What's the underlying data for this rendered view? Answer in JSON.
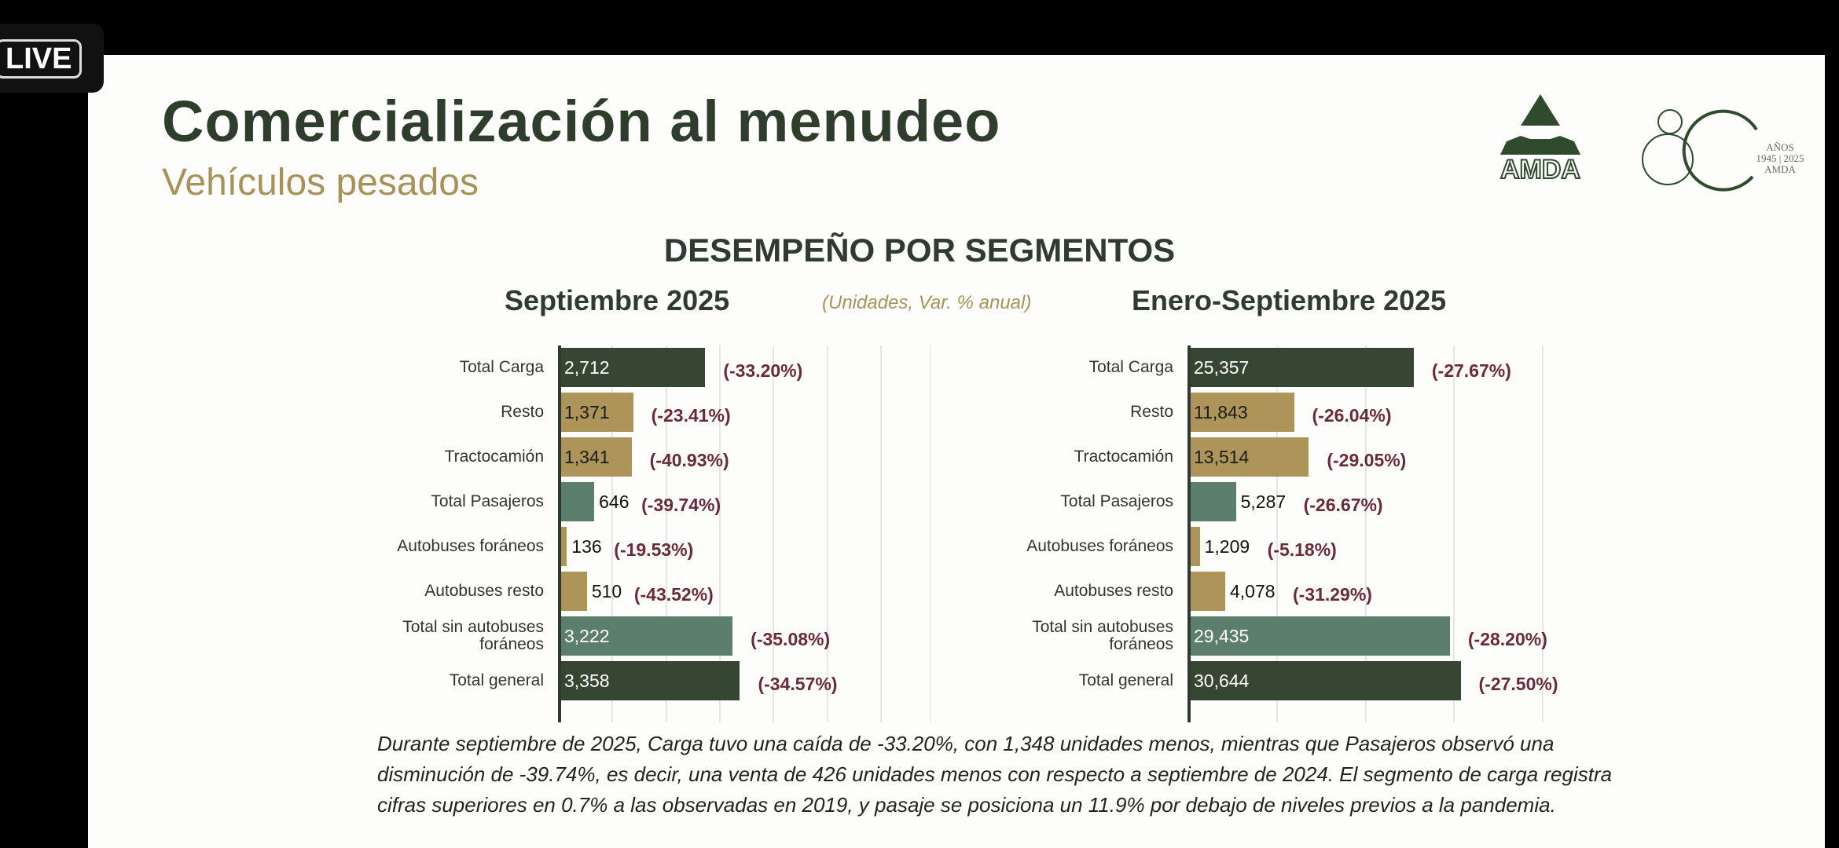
{
  "live_badge": "LIVE",
  "header": {
    "title": "Comercialización al menudeo",
    "subtitle": "Vehículos pesados",
    "logo_text": "AMDA",
    "anniversary": {
      "number": "80",
      "line1": "AÑOS",
      "line2": "1945 | 2025",
      "line3": "AMDA"
    }
  },
  "section_title": "DESEMPEÑO POR SEGMENTOS",
  "units_note": "(Unidades, Var. % anual)",
  "colors": {
    "dark": "#374533",
    "gold": "#ad9459",
    "teal": "#5c7e6c",
    "pct": "#6b2a3a"
  },
  "chart_data": [
    {
      "type": "bar",
      "orientation": "horizontal",
      "title": "Septiembre 2025",
      "xlim": [
        0,
        6000
      ],
      "grid_step": 1000,
      "categories": [
        "Total Carga",
        "Resto",
        "Tractocamión",
        "Total Pasajeros",
        "Autobuses foráneos",
        "Autobuses resto",
        "Total sin autobuses foráneos",
        "Total general"
      ],
      "values": [
        2712,
        1371,
        1341,
        646,
        136,
        510,
        3222,
        3358
      ],
      "value_labels": [
        "2,712",
        "1,371",
        "1,341",
        "646",
        "136",
        "510",
        "3,222",
        "3,358"
      ],
      "var_pct": [
        "(-33.20%)",
        "(-23.41%)",
        "(-40.93%)",
        "(-39.74%)",
        "(-19.53%)",
        "(-43.52%)",
        "(-35.08%)",
        "(-34.57%)"
      ],
      "bar_colors": [
        "dark",
        "gold",
        "gold",
        "teal",
        "gold",
        "gold",
        "teal",
        "dark"
      ]
    },
    {
      "type": "bar",
      "orientation": "horizontal",
      "title": "Enero-Septiembre 2025",
      "xlim": [
        0,
        40000
      ],
      "grid_step": 10000,
      "categories": [
        "Total Carga",
        "Resto",
        "Tractocamión",
        "Total Pasajeros",
        "Autobuses foráneos",
        "Autobuses resto",
        "Total sin autobuses foráneos",
        "Total general"
      ],
      "values": [
        25357,
        11843,
        13514,
        5287,
        1209,
        4078,
        29435,
        30644
      ],
      "value_labels": [
        "25,357",
        "11,843",
        "13,514",
        "5,287",
        "1,209",
        "4,078",
        "29,435",
        "30,644"
      ],
      "var_pct": [
        "(-27.67%)",
        "(-26.04%)",
        "(-29.05%)",
        "(-26.67%)",
        "(-5.18%)",
        "(-31.29%)",
        "(-28.20%)",
        "(-27.50%)"
      ],
      "bar_colors": [
        "dark",
        "gold",
        "gold",
        "teal",
        "gold",
        "gold",
        "teal",
        "dark"
      ]
    }
  ],
  "paragraph": "Durante septiembre de 2025, Carga tuvo una caída de -33.20%, con 1,348 unidades menos, mientras que Pasajeros observó una disminución de -39.74%, es decir, una venta de 426 unidades menos con respecto a septiembre de 2024. El segmento de carga registra cifras superiores en 0.7% a las observadas en 2019, y pasaje se posiciona un 11.9% por debajo de niveles previos a la pandemia."
}
